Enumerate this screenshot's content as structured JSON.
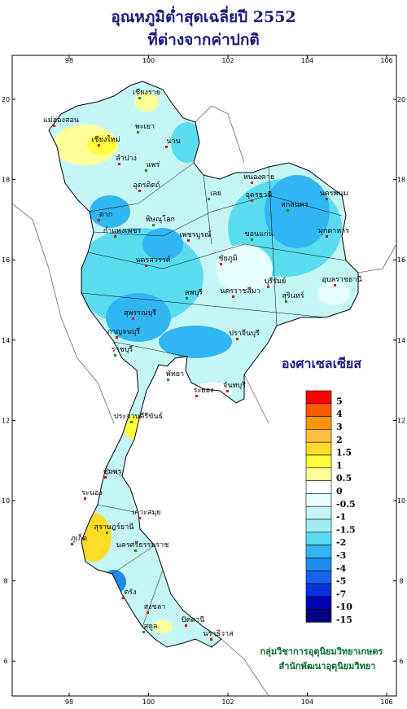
{
  "title": {
    "line1": "อุณหภูมิต่ำสุดเฉลี่ยปี  2552",
    "line2": "ที่ต่างจากค่าปกติ"
  },
  "axes": {
    "top": [
      "98",
      "100",
      "102",
      "104",
      "106"
    ],
    "bottom": [
      "98",
      "100",
      "102",
      "104",
      "106"
    ],
    "left": [
      "20",
      "18",
      "16",
      "14",
      "12",
      "10",
      "8",
      "6"
    ],
    "right": [
      "20",
      "18",
      "16",
      "14",
      "12",
      "10",
      "8",
      "6"
    ]
  },
  "provinces": [
    "เชียงราย",
    "แม่ฮ่องสอน",
    "เชียงใหม่",
    "พะเยา",
    "ลำปาง",
    "น่าน",
    "แพร่",
    "อุตรดิตถ์",
    "ตาก",
    "พิษณุโลก",
    "กำแพงเพชร",
    "เพชรบูรณ์",
    "เลย",
    "หนองคาย",
    "อุดรธานี",
    "สกลนคร",
    "นครพนม",
    "มุกดาหาร",
    "ขอนแก่น",
    "ชัยภูมิ",
    "นครสวรรค์",
    "ลพบุรี",
    "สุพรรณบุรี",
    "กาญจนบุรี",
    "ราชบุรี",
    "นครราชสีมา",
    "บุรีรัมย์",
    "สุรินทร์",
    "อุบลราชธานี",
    "ปราจีนบุรี",
    "พัทยา",
    "ระยอง",
    "จันทบุรี",
    "ประจวบคีรีขันธ์",
    "ชุมพร",
    "ระนอง",
    "สุราษฎร์ธานี",
    "เกาะสมุย",
    "ภูเก็ต",
    "นครศรีธรรมราช",
    "ตรัง",
    "สงขลา",
    "สตูล",
    "ปัตตานี",
    "นราธิวาส"
  ],
  "legend": {
    "title": "องศาเซลเซียส",
    "items": [
      {
        "label": "5",
        "color": "#ff0000"
      },
      {
        "label": "4",
        "color": "#ff5a00"
      },
      {
        "label": "3",
        "color": "#ff9600"
      },
      {
        "label": "2",
        "color": "#ffc040"
      },
      {
        "label": "1.5",
        "color": "#ffdc28"
      },
      {
        "label": "1",
        "color": "#ffff3c"
      },
      {
        "label": "0.5",
        "color": "#ffff9a"
      },
      {
        "label": "0",
        "color": "#ffffff"
      },
      {
        "label": "-0.5",
        "color": "#e6ffff"
      },
      {
        "label": "-1",
        "color": "#c4f6f6"
      },
      {
        "label": "-1.5",
        "color": "#a0ecf2"
      },
      {
        "label": "-2",
        "color": "#5adcf0"
      },
      {
        "label": "-3",
        "color": "#30b6f2"
      },
      {
        "label": "-4",
        "color": "#1e8cf0"
      },
      {
        "label": "-5",
        "color": "#1464f0"
      },
      {
        "label": "-7",
        "color": "#0a32dc"
      },
      {
        "label": "-10",
        "color": "#0000b4"
      },
      {
        "label": "-15",
        "color": "#000080"
      }
    ]
  },
  "credits": [
    "กลุ่มวิชาการอุตุนิยมวิทยาเกษตร",
    "สำนักพัฒนาอุตุนิยมวิทยา"
  ]
}
